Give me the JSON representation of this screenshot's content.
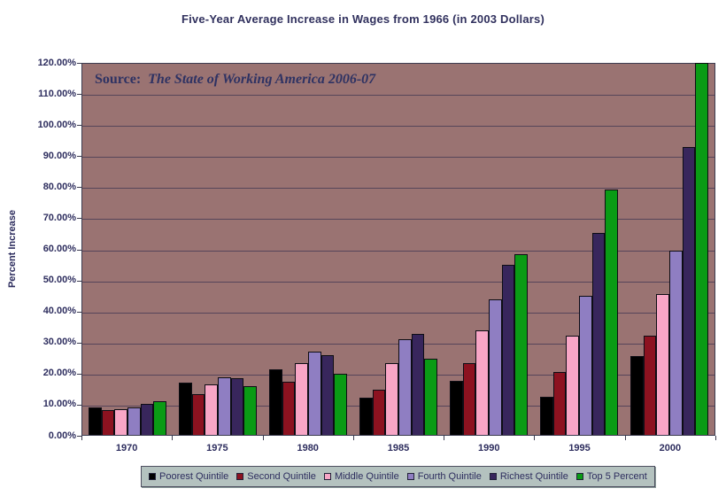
{
  "title": "Five-Year Average Increase in Wages from 1966 (in 2003 Dollars)",
  "source_note": {
    "prefix": "Source:",
    "text": "The State of Working America 2006-07"
  },
  "chart_data": {
    "type": "bar",
    "categories": [
      "1970",
      "1975",
      "1980",
      "1985",
      "1990",
      "1995",
      "2000"
    ],
    "series": [
      {
        "name": "Poorest Quintile",
        "color": "#000000",
        "values": [
          8.8,
          16.8,
          21.2,
          12.0,
          17.5,
          12.3,
          25.5
        ]
      },
      {
        "name": "Second Quintile",
        "color": "#8c1220",
        "values": [
          8.1,
          13.0,
          17.2,
          14.4,
          23.2,
          20.1,
          31.9
        ]
      },
      {
        "name": "Middle Quintile",
        "color": "#f8a6c6",
        "values": [
          8.4,
          16.2,
          23.2,
          23.0,
          33.6,
          32.0,
          45.4
        ]
      },
      {
        "name": "Fourth Quintile",
        "color": "#8f7ec2",
        "values": [
          8.9,
          18.4,
          26.8,
          30.9,
          43.5,
          44.7,
          59.4
        ]
      },
      {
        "name": "Richest Quintile",
        "color": "#38265c",
        "values": [
          10.0,
          18.2,
          25.8,
          32.5,
          54.7,
          65.1,
          92.7
        ]
      },
      {
        "name": "Top 5 Percent",
        "color": "#0a9b15",
        "values": [
          10.7,
          15.7,
          19.6,
          24.4,
          58.1,
          79.0,
          119.6
        ]
      }
    ],
    "xlabel": "",
    "ylabel": "Percent Increase",
    "ylim": [
      0,
      120
    ],
    "ytick_step": 10,
    "ytick_suffix": "%",
    "ytick_decimals": 2,
    "grid": true,
    "legend_position": "bottom",
    "plot_bg_color": "#9a7372",
    "grid_color": "#564559",
    "text_color": "#2d2d5e",
    "legend_bg_color": "#b4c2bf"
  }
}
